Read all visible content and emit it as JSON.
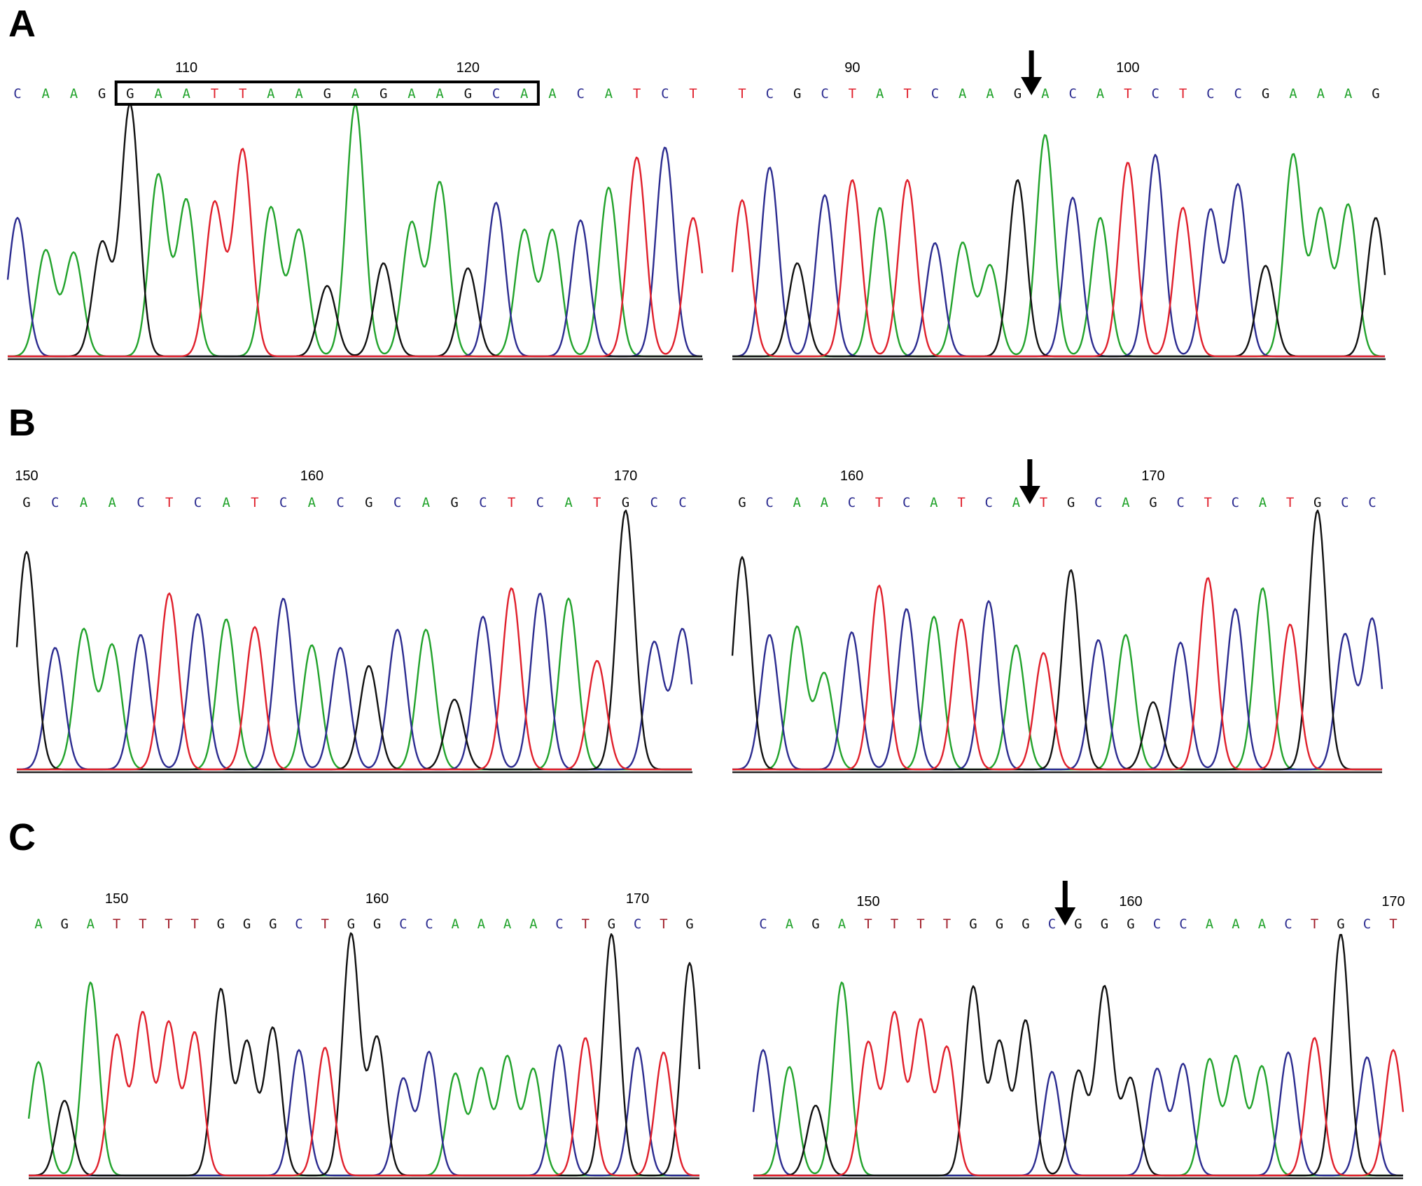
{
  "colors": {
    "A": "#22a32c",
    "C": "#2c2c90",
    "G": "#111111",
    "T": "#e0202c",
    "T_alt": "#a01c28"
  },
  "panels": [
    {
      "letter": "A",
      "traces": [
        {
          "bases": "CAAGGAATTAAGAGAAGCAACATCT",
          "positions": [
            {
              "idx": 6,
              "label": "110"
            },
            {
              "idx": 16,
              "label": "120"
            }
          ],
          "box": [
            4,
            18
          ],
          "arrow_at": null,
          "heights": [
            0.55,
            0.42,
            0.41,
            0.45,
            1.0,
            0.72,
            0.62,
            0.61,
            0.82,
            0.59,
            0.5,
            0.28,
            1.0,
            0.37,
            0.53,
            0.69,
            0.35,
            0.61,
            0.5,
            0.5,
            0.54,
            0.67,
            0.79,
            0.83,
            0.55
          ]
        },
        {
          "bases": "TCGCTATCAAGACATCTCCGAAAG",
          "positions": [
            {
              "idx": 4,
              "label": "90"
            },
            {
              "idx": 14,
              "label": "100"
            }
          ],
          "box": null,
          "arrow_at": 11,
          "heights": [
            0.62,
            0.75,
            0.37,
            0.64,
            0.7,
            0.59,
            0.7,
            0.45,
            0.45,
            0.36,
            0.7,
            0.88,
            0.63,
            0.55,
            0.77,
            0.8,
            0.59,
            0.58,
            0.68,
            0.36,
            0.8,
            0.58,
            0.6,
            0.55
          ]
        }
      ]
    },
    {
      "letter": "B",
      "traces": [
        {
          "bases": "GCAACTCATCACGCAGCTCATGCC",
          "positions": [
            {
              "idx": 0,
              "label": "150"
            },
            {
              "idx": 10,
              "label": "160"
            },
            {
              "idx": 21,
              "label": "170"
            }
          ],
          "box": null,
          "arrow_at": null,
          "heights": [
            0.84,
            0.47,
            0.54,
            0.48,
            0.52,
            0.68,
            0.6,
            0.58,
            0.55,
            0.66,
            0.48,
            0.47,
            0.4,
            0.54,
            0.54,
            0.27,
            0.59,
            0.7,
            0.68,
            0.66,
            0.42,
            1.0,
            0.49,
            0.54
          ]
        },
        {
          "bases": "GCAACTCATCATGCAGCTCATGCC",
          "positions": [
            {
              "idx": 4,
              "label": "160"
            },
            {
              "idx": 15,
              "label": "170"
            }
          ],
          "box": null,
          "arrow_at": 11,
          "heights": [
            0.82,
            0.52,
            0.55,
            0.37,
            0.53,
            0.71,
            0.62,
            0.59,
            0.58,
            0.65,
            0.48,
            0.45,
            0.77,
            0.5,
            0.52,
            0.26,
            0.49,
            0.74,
            0.62,
            0.7,
            0.56,
            1.0,
            0.52,
            0.58
          ]
        }
      ]
    },
    {
      "letter": "C",
      "traces": [
        {
          "bases": "AGATTTTGGGCTGGCCAAAACTGCTG",
          "positions": [
            {
              "idx": 3,
              "label": "150"
            },
            {
              "idx": 13,
              "label": "160"
            },
            {
              "idx": 23,
              "label": "170"
            }
          ],
          "box": null,
          "arrow_at": null,
          "heights": [
            0.47,
            0.31,
            0.8,
            0.58,
            0.67,
            0.63,
            0.59,
            0.77,
            0.55,
            0.61,
            0.52,
            0.53,
            1.0,
            0.57,
            0.4,
            0.51,
            0.42,
            0.44,
            0.49,
            0.44,
            0.54,
            0.57,
            1.0,
            0.53,
            0.51,
            0.88
          ]
        },
        {
          "bases": "CAGATTTTGGGCGGGCCAAACTGCT",
          "positions": [
            {
              "idx": 4,
              "label": "150"
            },
            {
              "idx": 14,
              "label": "160"
            },
            {
              "idx": 24,
              "label": "170"
            }
          ],
          "box": null,
          "arrow_at": 12,
          "heights": [
            0.52,
            0.45,
            0.29,
            0.8,
            0.55,
            0.67,
            0.64,
            0.53,
            0.78,
            0.55,
            0.64,
            0.43,
            0.43,
            0.78,
            0.4,
            0.44,
            0.46,
            0.48,
            0.49,
            0.45,
            0.51,
            0.57,
            1.0,
            0.49,
            0.52
          ]
        }
      ]
    }
  ]
}
